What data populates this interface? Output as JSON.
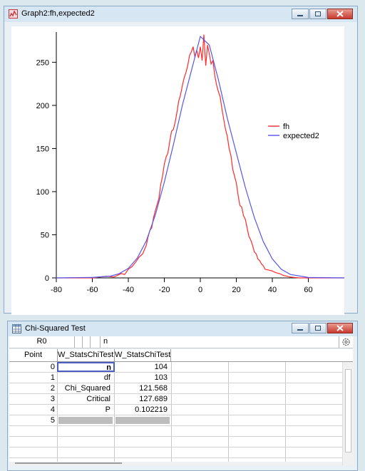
{
  "graph_window": {
    "title": "Graph2:fh,expected2"
  },
  "table_window": {
    "title": "Chi-Squared Test",
    "entry_cell_label": "R0",
    "entry_value": "n",
    "columns": [
      "Point",
      "W_StatsChiTest.l",
      "W_StatsChiTest.d"
    ],
    "rows": [
      {
        "point": "0",
        "label": "n",
        "value": "104"
      },
      {
        "point": "1",
        "label": "df",
        "value": "103"
      },
      {
        "point": "2",
        "label": "Chi_Squared",
        "value": "121.568"
      },
      {
        "point": "3",
        "label": "Critical",
        "value": "127.689"
      },
      {
        "point": "4",
        "label": "P",
        "value": "0.102219"
      },
      {
        "point": "5",
        "label": "",
        "value": ""
      }
    ]
  },
  "chart_data": {
    "type": "line",
    "xlim": [
      -80,
      80
    ],
    "ylim": [
      0,
      285
    ],
    "xticks": [
      -80,
      -60,
      -40,
      -20,
      0,
      20,
      40,
      60
    ],
    "yticks": [
      0,
      50,
      100,
      150,
      200,
      250
    ],
    "legend_position": "right",
    "colors": {
      "fh": "#ff2a2a",
      "expected2": "#5555ee"
    },
    "series": [
      {
        "name": "fh",
        "x": [
          -80,
          -60,
          -52,
          -48,
          -46,
          -44,
          -42,
          -40,
          -38,
          -36,
          -34,
          -32,
          -30,
          -29,
          -28,
          -27,
          -26,
          -25,
          -24,
          -23,
          -22,
          -21,
          -20,
          -19,
          -18,
          -17,
          -16,
          -15,
          -14,
          -13,
          -12,
          -11,
          -10,
          -9,
          -8,
          -7,
          -6,
          -5,
          -4,
          -3,
          -2,
          -1,
          0,
          1,
          2,
          3,
          4,
          5,
          6,
          7,
          8,
          9,
          10,
          11,
          12,
          13,
          14,
          15,
          16,
          17,
          18,
          19,
          20,
          21,
          22,
          23,
          24,
          25,
          26,
          27,
          28,
          29,
          30,
          31,
          32,
          33,
          34,
          35,
          36,
          38,
          40,
          42,
          44,
          46,
          48,
          50,
          55,
          60,
          70,
          80
        ],
        "y": [
          0,
          0,
          2,
          1,
          3,
          5,
          4,
          10,
          13,
          18,
          24,
          28,
          38,
          48,
          55,
          58,
          70,
          78,
          85,
          92,
          108,
          118,
          132,
          140,
          145,
          158,
          170,
          172,
          180,
          192,
          205,
          212,
          223,
          232,
          238,
          246,
          258,
          262,
          268,
          256,
          264,
          255,
          268,
          252,
          282,
          246,
          270,
          260,
          248,
          252,
          235,
          224,
          216,
          210,
          196,
          184,
          172,
          164,
          150,
          142,
          126,
          118,
          110,
          96,
          84,
          82,
          72,
          68,
          58,
          48,
          44,
          38,
          30,
          28,
          22,
          20,
          16,
          14,
          10,
          9,
          8,
          6,
          5,
          3,
          2,
          1,
          0,
          0,
          0,
          0
        ]
      },
      {
        "name": "expected2",
        "x": [
          -80,
          -60,
          -50,
          -45,
          -40,
          -35,
          -30,
          -25,
          -20,
          -15,
          -10,
          -5,
          0,
          5,
          10,
          15,
          20,
          25,
          30,
          35,
          40,
          45,
          50,
          60,
          80
        ],
        "y": [
          0,
          0.6,
          2,
          5,
          11,
          23,
          43,
          73,
          111,
          154,
          200,
          240,
          280,
          270,
          230,
          185,
          145,
          105,
          70,
          42,
          22,
          10,
          4,
          0.5,
          0
        ]
      }
    ]
  }
}
